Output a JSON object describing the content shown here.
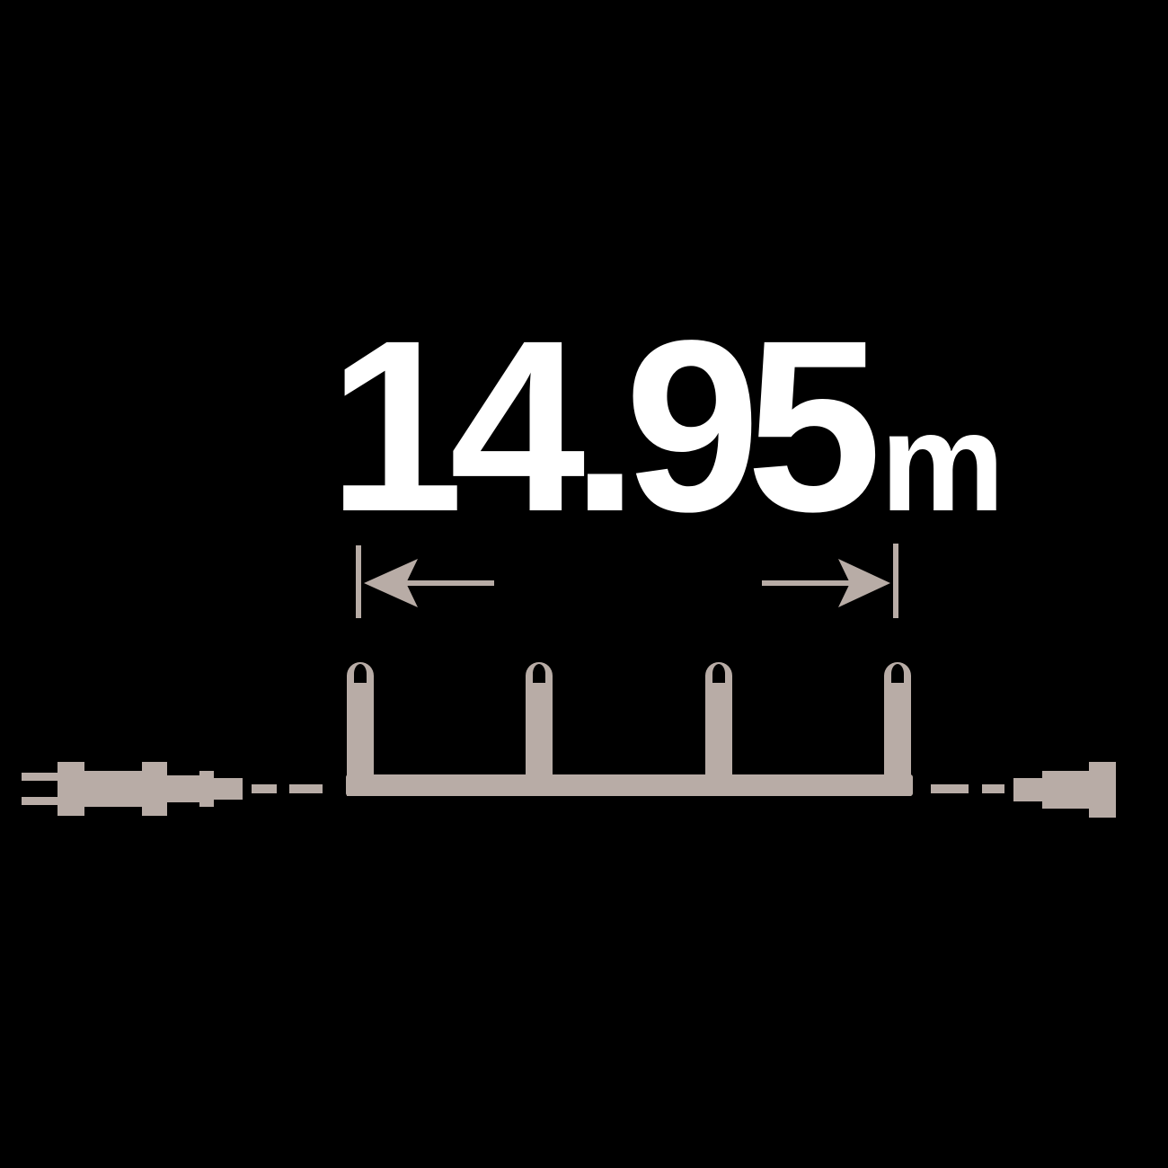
{
  "length": {
    "value": "14.95",
    "unit": "m"
  },
  "diagram": {
    "bulb_count": 4,
    "colors": {
      "background": "#000000",
      "text": "#ffffff",
      "cord": "#b8aca6"
    },
    "icons": [
      "power-plug-icon",
      "end-connector-icon",
      "bulb-icon",
      "dimension-arrow-icon"
    ]
  }
}
